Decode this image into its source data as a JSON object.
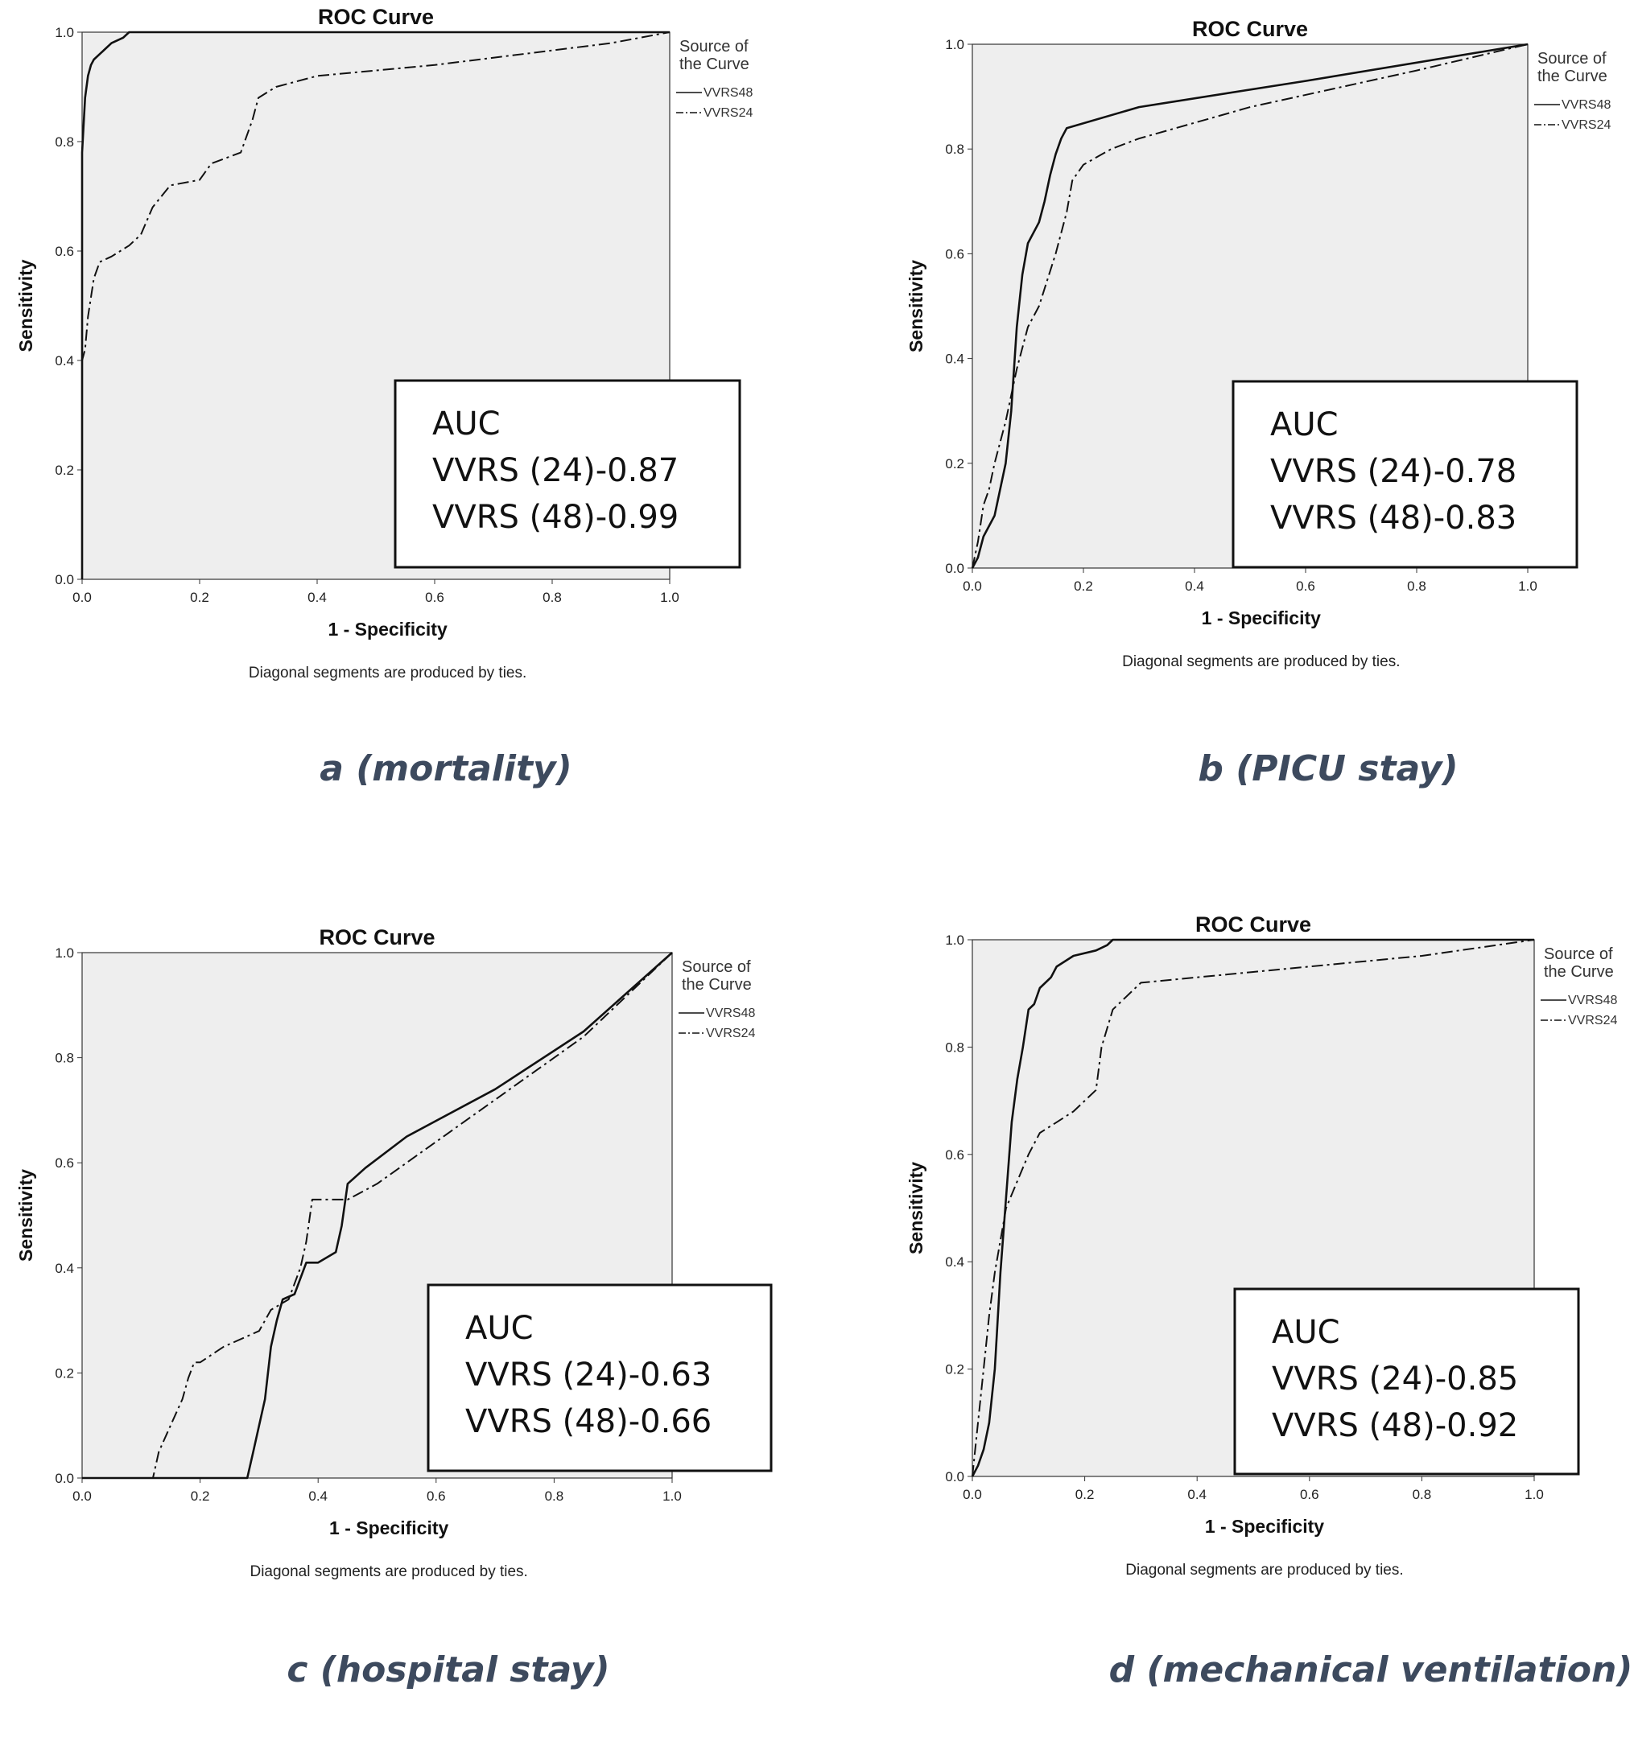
{
  "chart_data": [
    {
      "type": "line",
      "title": "ROC Curve",
      "xlabel": "1 - Specificity",
      "ylabel": "Sensitivity",
      "xlim": [
        0,
        1
      ],
      "ylim": [
        0,
        1
      ],
      "xticks": [
        "0.0",
        "0.2",
        "0.4",
        "0.6",
        "0.8",
        "1.0"
      ],
      "yticks": [
        "0.0",
        "0.2",
        "0.4",
        "0.6",
        "0.8",
        "1.0"
      ],
      "legend_title": "Source of the Curve",
      "legend_position": "right",
      "footnote": "Diagonal segments are produced by ties.",
      "caption": "a (mortality)",
      "auc_box": {
        "heading": "AUC",
        "line1": "VVRS (24)-0.87",
        "line2": "VVRS (48)-0.99"
      },
      "series": [
        {
          "name": "VVRS48",
          "style": "solid",
          "x": [
            0,
            0,
            0.005,
            0.01,
            0.015,
            0.02,
            0.03,
            0.05,
            0.07,
            0.08,
            1.0
          ],
          "y": [
            0,
            0.78,
            0.88,
            0.92,
            0.94,
            0.95,
            0.96,
            0.98,
            0.99,
            1.0,
            1.0
          ]
        },
        {
          "name": "VVRS24",
          "style": "dash-dot",
          "x": [
            0,
            0,
            0.005,
            0.01,
            0.02,
            0.03,
            0.05,
            0.08,
            0.1,
            0.12,
            0.15,
            0.2,
            0.22,
            0.27,
            0.29,
            0.3,
            0.33,
            0.4,
            0.6,
            0.9,
            1.0
          ],
          "y": [
            0,
            0.4,
            0.42,
            0.48,
            0.55,
            0.58,
            0.59,
            0.61,
            0.63,
            0.68,
            0.72,
            0.73,
            0.76,
            0.78,
            0.84,
            0.88,
            0.9,
            0.92,
            0.94,
            0.98,
            1.0
          ]
        }
      ]
    },
    {
      "type": "line",
      "title": "ROC Curve",
      "xlabel": "1 - Specificity",
      "ylabel": "Sensitivity",
      "xlim": [
        0,
        1
      ],
      "ylim": [
        0,
        1
      ],
      "xticks": [
        "0.0",
        "0.2",
        "0.4",
        "0.6",
        "0.8",
        "1.0"
      ],
      "yticks": [
        "0.0",
        "0.2",
        "0.4",
        "0.6",
        "0.8",
        "1.0"
      ],
      "legend_title": "Source of the Curve",
      "legend_position": "right",
      "footnote": "Diagonal segments are produced by ties.",
      "caption": "b (PICU stay)",
      "auc_box": {
        "heading": "AUC",
        "line1": "VVRS (24)-0.78",
        "line2": "VVRS (48)-0.83"
      },
      "series": [
        {
          "name": "VVRS48",
          "style": "solid",
          "x": [
            0,
            0.01,
            0.02,
            0.04,
            0.06,
            0.07,
            0.08,
            0.09,
            0.1,
            0.12,
            0.13,
            0.14,
            0.15,
            0.16,
            0.17,
            0.3,
            0.6,
            1.0
          ],
          "y": [
            0,
            0.02,
            0.06,
            0.1,
            0.2,
            0.3,
            0.46,
            0.56,
            0.62,
            0.66,
            0.7,
            0.75,
            0.79,
            0.82,
            0.84,
            0.88,
            0.93,
            1.0
          ]
        },
        {
          "name": "VVRS24",
          "style": "dash-dot",
          "x": [
            0,
            0.01,
            0.02,
            0.03,
            0.04,
            0.06,
            0.08,
            0.1,
            0.12,
            0.15,
            0.17,
            0.18,
            0.2,
            0.25,
            0.3,
            0.5,
            0.8,
            1.0
          ],
          "y": [
            0,
            0.05,
            0.12,
            0.15,
            0.2,
            0.28,
            0.38,
            0.46,
            0.5,
            0.6,
            0.68,
            0.74,
            0.77,
            0.8,
            0.82,
            0.88,
            0.95,
            1.0
          ]
        }
      ]
    },
    {
      "type": "line",
      "title": "ROC Curve",
      "xlabel": "1 - Specificity",
      "ylabel": "Sensitivity",
      "xlim": [
        0,
        1
      ],
      "ylim": [
        0,
        1
      ],
      "xticks": [
        "0.0",
        "0.2",
        "0.4",
        "0.6",
        "0.8",
        "1.0"
      ],
      "yticks": [
        "0.0",
        "0.2",
        "0.4",
        "0.6",
        "0.8",
        "1.0"
      ],
      "legend_title": "Source of the Curve",
      "legend_position": "right",
      "footnote": "Diagonal segments are produced by ties.",
      "caption": "c (hospital stay)",
      "auc_box": {
        "heading": "AUC",
        "line1": "VVRS (24)-0.63",
        "line2": "VVRS (48)-0.66"
      },
      "series": [
        {
          "name": "VVRS48",
          "style": "solid",
          "x": [
            0,
            0.28,
            0.29,
            0.31,
            0.32,
            0.33,
            0.34,
            0.36,
            0.37,
            0.38,
            0.4,
            0.43,
            0.44,
            0.45,
            0.46,
            0.48,
            0.55,
            0.7,
            0.85,
            1.0
          ],
          "y": [
            0,
            0,
            0.05,
            0.15,
            0.25,
            0.3,
            0.34,
            0.35,
            0.38,
            0.41,
            0.41,
            0.43,
            0.48,
            0.56,
            0.57,
            0.59,
            0.65,
            0.74,
            0.85,
            1.0
          ]
        },
        {
          "name": "VVRS24",
          "style": "dash-dot",
          "x": [
            0,
            0.12,
            0.13,
            0.15,
            0.17,
            0.18,
            0.19,
            0.2,
            0.24,
            0.3,
            0.32,
            0.35,
            0.37,
            0.38,
            0.39,
            0.45,
            0.5,
            0.7,
            0.85,
            1.0
          ],
          "y": [
            0,
            0,
            0.05,
            0.1,
            0.15,
            0.19,
            0.22,
            0.22,
            0.25,
            0.28,
            0.32,
            0.34,
            0.4,
            0.45,
            0.53,
            0.53,
            0.56,
            0.72,
            0.84,
            1.0
          ]
        }
      ]
    },
    {
      "type": "line",
      "title": "ROC Curve",
      "xlabel": "1 - Specificity",
      "ylabel": "Sensitivity",
      "xlim": [
        0,
        1
      ],
      "ylim": [
        0,
        1
      ],
      "xticks": [
        "0.0",
        "0.2",
        "0.4",
        "0.6",
        "0.8",
        "1.0"
      ],
      "yticks": [
        "0.0",
        "0.2",
        "0.4",
        "0.6",
        "0.8",
        "1.0"
      ],
      "legend_title": "Source of the Curve",
      "legend_position": "right",
      "footnote": "Diagonal segments are produced by ties.",
      "caption": "d (mechanical ventilation)",
      "auc_box": {
        "heading": "AUC",
        "line1": "VVRS (24)-0.85",
        "line2": "VVRS (48)-0.92"
      },
      "series": [
        {
          "name": "VVRS48",
          "style": "solid",
          "x": [
            0,
            0.01,
            0.02,
            0.03,
            0.04,
            0.05,
            0.06,
            0.07,
            0.08,
            0.09,
            0.1,
            0.11,
            0.12,
            0.14,
            0.15,
            0.18,
            0.22,
            0.24,
            0.25,
            1.0
          ],
          "y": [
            0,
            0.02,
            0.05,
            0.1,
            0.2,
            0.38,
            0.52,
            0.66,
            0.74,
            0.8,
            0.87,
            0.88,
            0.91,
            0.93,
            0.95,
            0.97,
            0.98,
            0.99,
            1.0,
            1.0
          ]
        },
        {
          "name": "VVRS24",
          "style": "dash-dot",
          "x": [
            0,
            0.01,
            0.02,
            0.03,
            0.04,
            0.05,
            0.06,
            0.08,
            0.1,
            0.12,
            0.15,
            0.18,
            0.2,
            0.22,
            0.23,
            0.25,
            0.3,
            0.5,
            0.8,
            1.0
          ],
          "y": [
            0,
            0.1,
            0.2,
            0.3,
            0.38,
            0.44,
            0.5,
            0.55,
            0.6,
            0.64,
            0.66,
            0.68,
            0.7,
            0.72,
            0.8,
            0.87,
            0.92,
            0.94,
            0.97,
            1.0
          ]
        }
      ]
    }
  ],
  "colors": {
    "plot_background": "#eeeeee",
    "curve": "#111111",
    "caption": "#3d4a5e"
  }
}
